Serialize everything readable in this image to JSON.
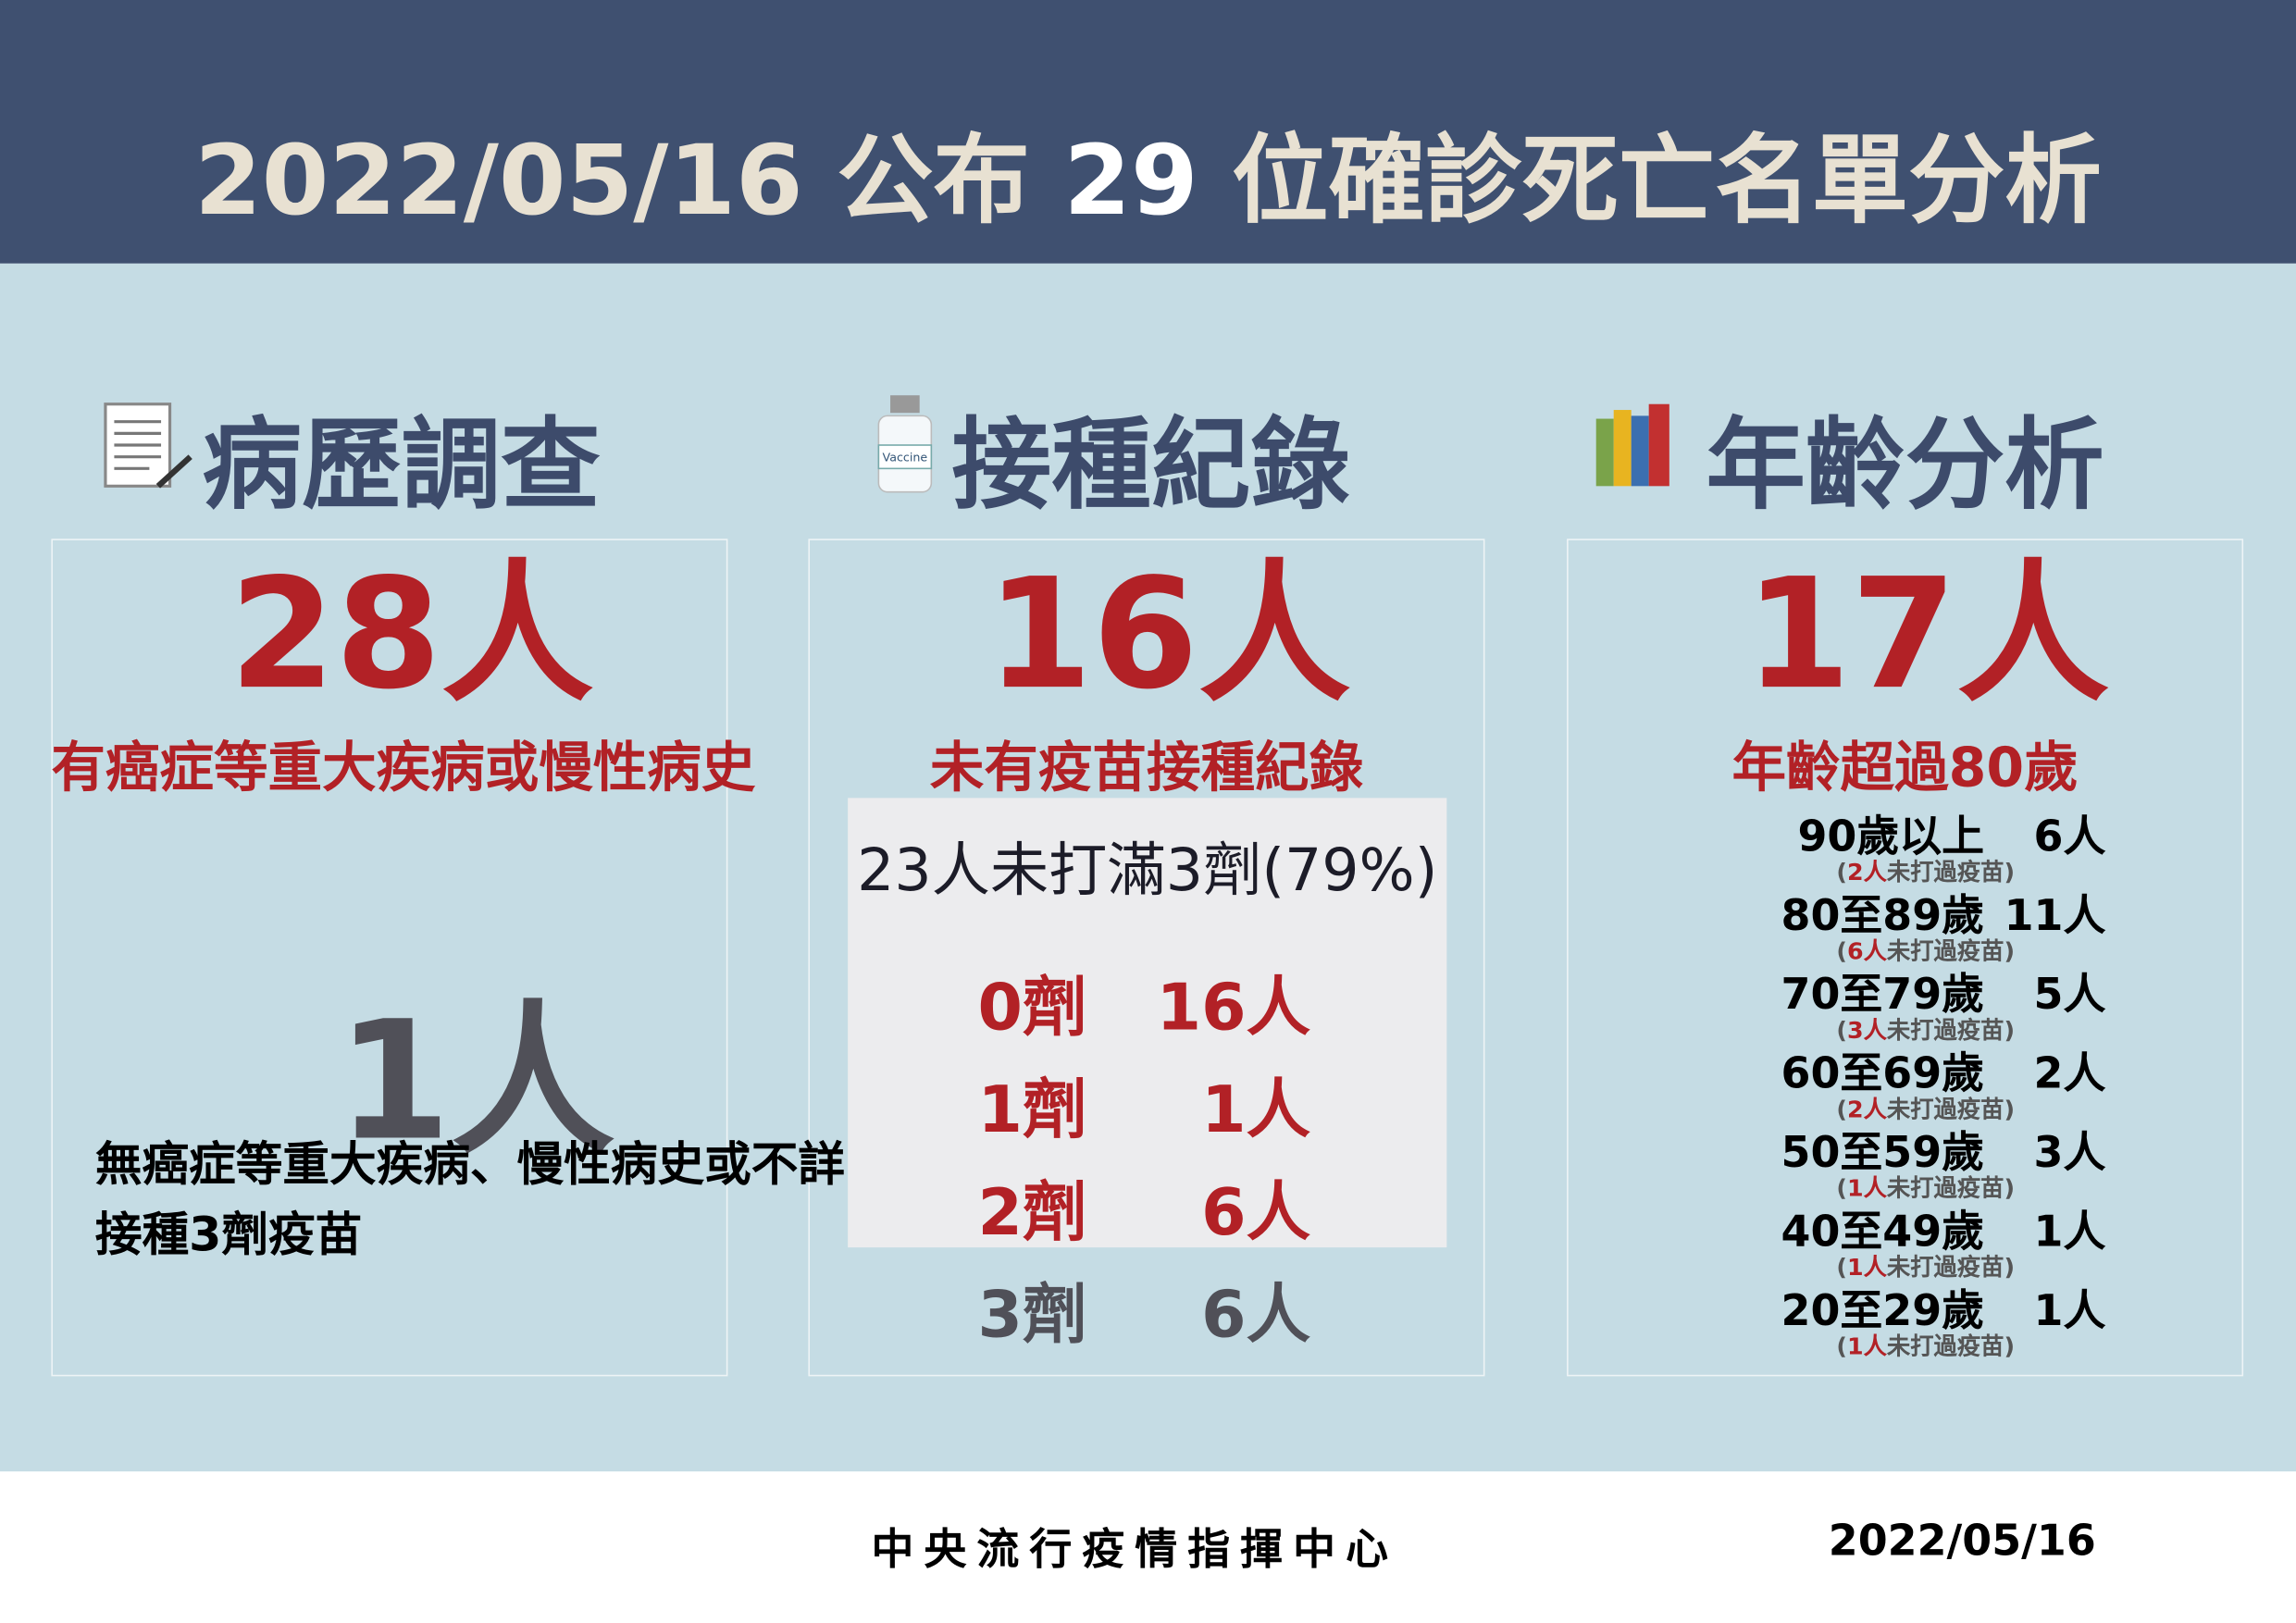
{
  "header": {
    "title": [
      "2022/05/16 公布 ",
      "29",
      " 位確診死亡名單分析"
    ]
  },
  "sections": [
    {
      "heading": "病歷調查",
      "big": "28人",
      "caption": "有癌症等重大疾病或慢性病史",
      "big2": "1人",
      "caption2": [
        "無癌症等重大疾病、慢性病史或不詳",
        "接種3劑疫苗"
      ]
    },
    {
      "heading": "接種紀錄",
      "big": "16人",
      "caption": "未有疫苗接種紀錄",
      "note": "23人未打滿3劑(79%)",
      "doses": [
        [
          "0劑",
          "16人"
        ],
        [
          "1劑",
          "1人"
        ],
        [
          "2劑",
          "6人"
        ],
        [
          "3劑",
          "6人"
        ]
      ]
    },
    {
      "heading": "年齡分析",
      "big": "17人",
      "caption": "年齡超過80歲",
      "ages": [
        {
          "group": "90歲以上",
          "count": "6人",
          "note": [
            "(",
            "2人",
            "未打過疫苗)"
          ]
        },
        {
          "group": "80至89歲",
          "count": "11人",
          "note": [
            "(",
            "6人",
            "未打過疫苗)"
          ]
        },
        {
          "group": "70至79歲",
          "count": "5人",
          "note": [
            "(",
            "3人",
            "未打過疫苗)"
          ]
        },
        {
          "group": "60至69歲",
          "count": "2人",
          "note": [
            "(",
            "2人",
            "未打過疫苗)"
          ]
        },
        {
          "group": "50至59歲",
          "count": "3人",
          "note": [
            "(",
            "1人",
            "未打過疫苗)"
          ]
        },
        {
          "group": "40至49歲",
          "count": "1人",
          "note": [
            "(",
            "1人",
            "未打過疫苗)"
          ]
        },
        {
          "group": "20至29歲",
          "count": "1人",
          "note": [
            "(",
            "1人",
            "未打過疫苗)"
          ]
        }
      ]
    }
  ],
  "footer": {
    "org": "中央流行疫情指揮中心",
    "date": "2022/05/16"
  }
}
